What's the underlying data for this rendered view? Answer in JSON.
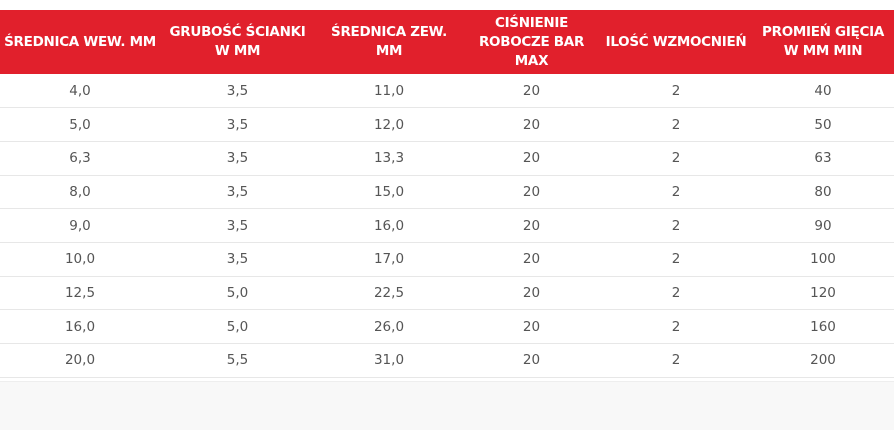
{
  "table": {
    "headers": [
      "ŚREDNICA WEW. MM",
      "GRUBOŚĆ ŚCIANKI W MM",
      "ŚREDNICA ZEW. MM",
      "CIŚNIENIE ROBOCZE BAR MAX",
      "ILOŚĆ WZMOCNIEŃ",
      "PROMIEŃ GIĘCIA W MM MIN"
    ],
    "rows": [
      [
        "4,0",
        "3,5",
        "11,0",
        "20",
        "2",
        "40"
      ],
      [
        "5,0",
        "3,5",
        "12,0",
        "20",
        "2",
        "50"
      ],
      [
        "6,3",
        "3,5",
        "13,3",
        "20",
        "2",
        "63"
      ],
      [
        "8,0",
        "3,5",
        "15,0",
        "20",
        "2",
        "80"
      ],
      [
        "9,0",
        "3,5",
        "16,0",
        "20",
        "2",
        "90"
      ],
      [
        "10,0",
        "3,5",
        "17,0",
        "20",
        "2",
        "100"
      ],
      [
        "12,5",
        "5,0",
        "22,5",
        "20",
        "2",
        "120"
      ],
      [
        "16,0",
        "5,0",
        "26,0",
        "20",
        "2",
        "160"
      ],
      [
        "20,0",
        "5,5",
        "31,0",
        "20",
        "2",
        "200"
      ]
    ]
  },
  "colors": {
    "header_bg": "#e1202c",
    "header_text": "#ffffff",
    "cell_text": "#555555",
    "row_border": "#e7e7e7"
  }
}
